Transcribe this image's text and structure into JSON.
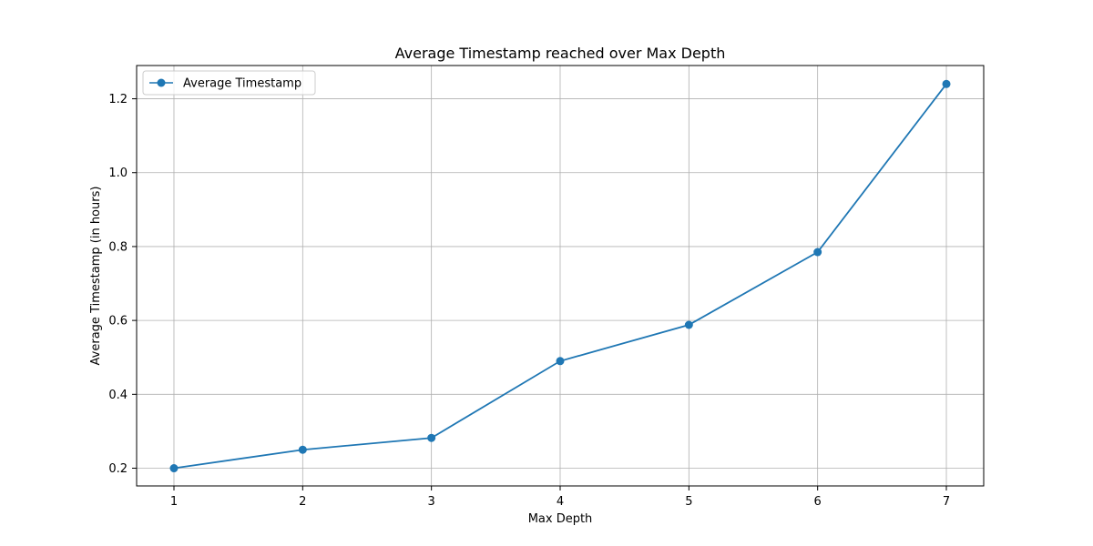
{
  "chart_data": {
    "type": "line",
    "title": "Average Timestamp reached over Max Depth",
    "xlabel": "Max Depth",
    "ylabel": "Average Timestamp (in hours)",
    "x": [
      1,
      2,
      3,
      4,
      5,
      6,
      7
    ],
    "xticks": [
      "1",
      "2",
      "3",
      "4",
      "5",
      "6",
      "7"
    ],
    "yticks": [
      "0.2",
      "0.4",
      "0.6",
      "0.8",
      "1.0",
      "1.2"
    ],
    "xlim": [
      0.71,
      7.29
    ],
    "ylim": [
      0.152,
      1.29
    ],
    "grid": true,
    "legend_position": "top-left",
    "series": [
      {
        "name": "Average Timestamp",
        "color": "#1f77b4",
        "marker": "circle",
        "values": [
          0.2,
          0.25,
          0.282,
          0.49,
          0.588,
          0.785,
          1.24
        ]
      }
    ]
  }
}
